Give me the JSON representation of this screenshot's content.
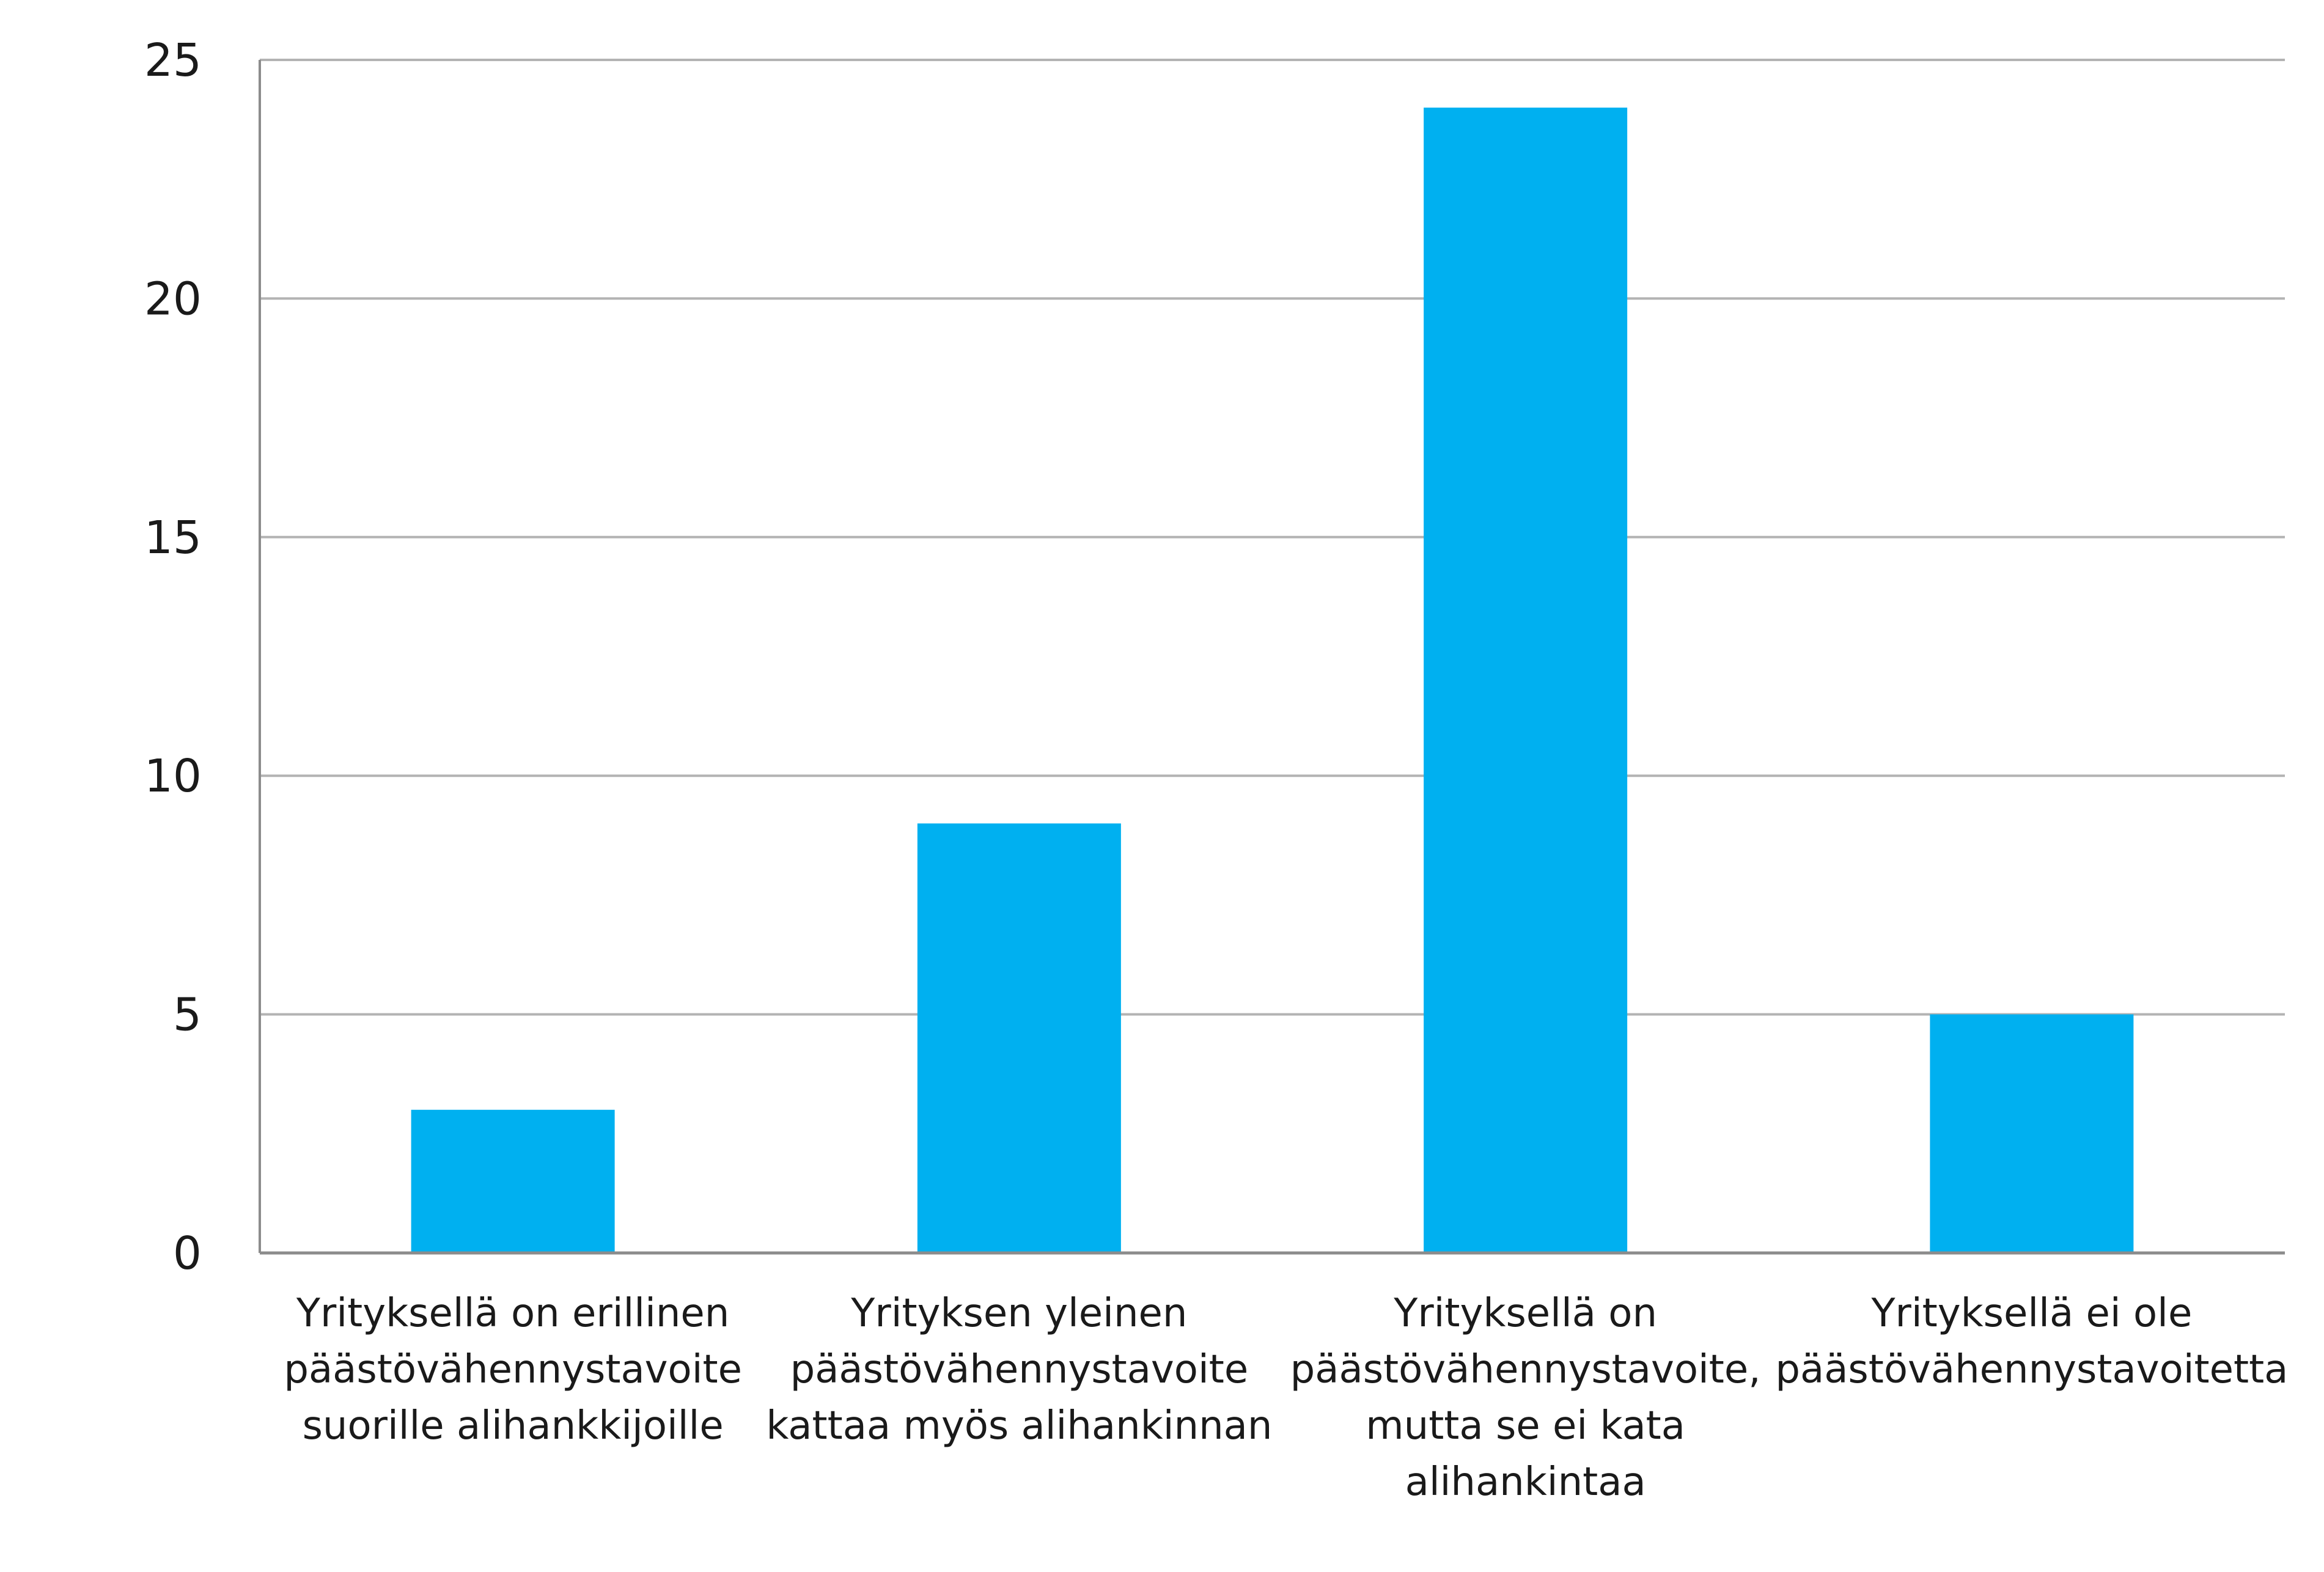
{
  "chart_data": {
    "type": "bar",
    "title": "",
    "xlabel": "",
    "ylabel": "",
    "ylim": [
      0,
      25
    ],
    "yticks": [
      0,
      5,
      10,
      15,
      20,
      25
    ],
    "grid": true,
    "bar_color": "#00b0f0",
    "grid_color": "#b3b3b3",
    "axis_color": "#8c8c8c",
    "categories": [
      [
        "Yrityksellä on erillinen",
        "päästövähennystavoite",
        "suorille alihankkijoille"
      ],
      [
        "Yrityksen yleinen",
        "päästövähennystavoite",
        "kattaa myös alihankinnan"
      ],
      [
        "Yrityksellä on",
        "päästövähennystavoite,",
        "mutta se ei kata",
        "alihankintaa"
      ],
      [
        "Yrityksellä ei ole",
        "päästövähennystavoitetta"
      ]
    ],
    "values": [
      3,
      9,
      24,
      5
    ]
  }
}
